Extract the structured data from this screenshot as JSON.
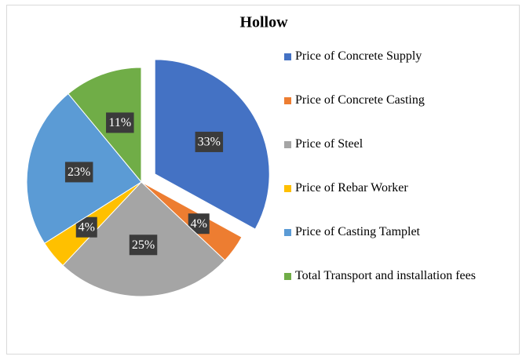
{
  "chart_data": {
    "type": "pie",
    "title": "Hollow",
    "categories": [
      "Price of Concrete Supply",
      "Price of Concrete Casting",
      "Price of Steel",
      "Price of Rebar Worker",
      "Price of Casting Tamplet",
      "Total Transport and installation fees"
    ],
    "values": [
      33,
      4,
      25,
      4,
      23,
      11
    ],
    "value_labels": [
      "33%",
      "4%",
      "25%",
      "4%",
      "23%",
      "11%"
    ],
    "colors": [
      "#4472c4",
      "#ed7d31",
      "#a5a5a5",
      "#ffc000",
      "#5b9bd5",
      "#70ad47"
    ],
    "legend": "right"
  }
}
